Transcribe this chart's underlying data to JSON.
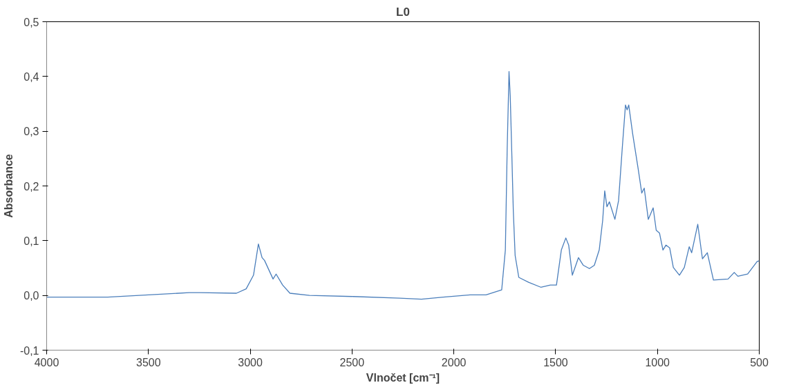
{
  "chart_data": {
    "type": "line",
    "title": "L0",
    "xlabel": "Vlnočet [cm⁻¹]",
    "ylabel": "Absorbance",
    "x": [
      4000,
      3700,
      3500,
      3300,
      3247,
      3068,
      3020,
      2984,
      2960,
      2942,
      2930,
      2888,
      2873,
      2841,
      2805,
      2709,
      2494,
      2267,
      2159,
      2052,
      1920,
      1842,
      1765,
      1747,
      1738,
      1729,
      1723,
      1715,
      1708,
      1699,
      1681,
      1633,
      1573,
      1526,
      1496,
      1472,
      1450,
      1436,
      1418,
      1388,
      1364,
      1334,
      1310,
      1286,
      1269,
      1259,
      1248,
      1236,
      1209,
      1191,
      1173,
      1157,
      1149,
      1141,
      1122,
      1095,
      1077,
      1065,
      1045,
      1021,
      1006,
      990,
      973,
      958,
      940,
      922,
      892,
      868,
      844,
      832,
      802,
      779,
      755,
      725,
      653,
      623,
      605,
      557,
      510,
      500
    ],
    "series": [
      {
        "color": "#4a7ebb",
        "values": [
          -0.003,
          -0.003,
          0.001,
          0.005,
          0.005,
          0.004,
          0.012,
          0.037,
          0.094,
          0.069,
          0.064,
          0.03,
          0.039,
          0.019,
          0.004,
          0.0,
          -0.002,
          -0.005,
          -0.007,
          -0.003,
          0.001,
          0.001,
          0.01,
          0.083,
          0.268,
          0.409,
          0.364,
          0.255,
          0.155,
          0.073,
          0.033,
          0.024,
          0.015,
          0.019,
          0.019,
          0.083,
          0.105,
          0.092,
          0.037,
          0.069,
          0.055,
          0.049,
          0.055,
          0.083,
          0.137,
          0.191,
          0.162,
          0.171,
          0.139,
          0.173,
          0.268,
          0.348,
          0.339,
          0.348,
          0.296,
          0.232,
          0.187,
          0.196,
          0.139,
          0.16,
          0.119,
          0.114,
          0.083,
          0.092,
          0.087,
          0.051,
          0.037,
          0.051,
          0.089,
          0.078,
          0.13,
          0.067,
          0.078,
          0.028,
          0.03,
          0.042,
          0.035,
          0.039,
          0.062,
          0.063
        ]
      }
    ],
    "xlim": [
      4000,
      500
    ],
    "xticks": [
      4000,
      3500,
      3000,
      2500,
      2000,
      1500,
      1000,
      500
    ],
    "ylim": [
      -0.1,
      0.5
    ],
    "yticks": [
      {
        "value": -0.1,
        "label": "-0,1"
      },
      {
        "value": 0.0,
        "label": "0,0"
      },
      {
        "value": 0.1,
        "label": "0,1"
      },
      {
        "value": 0.2,
        "label": "0,2"
      },
      {
        "value": 0.3,
        "label": "0,3"
      },
      {
        "value": 0.4,
        "label": "0,4"
      },
      {
        "value": 0.5,
        "label": "0,5"
      }
    ],
    "grid": false,
    "marker": "none",
    "line_style": "solid"
  }
}
